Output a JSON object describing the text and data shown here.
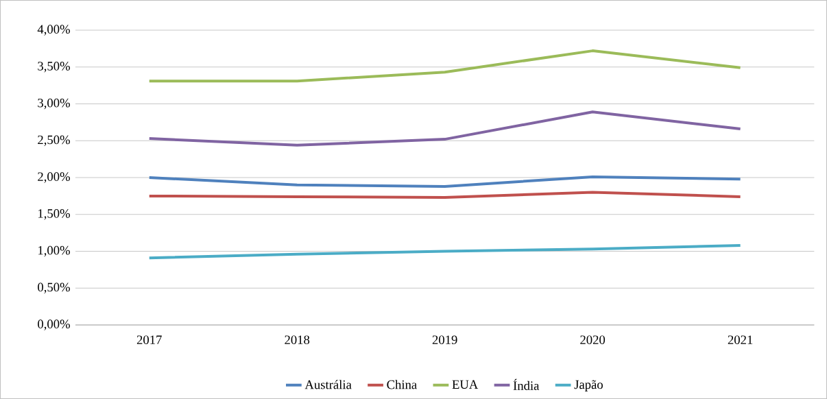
{
  "chart_data": {
    "type": "line",
    "categories": [
      "2017",
      "2018",
      "2019",
      "2020",
      "2021"
    ],
    "series": [
      {
        "name": "Austrália",
        "color": "#4f81bd",
        "values": [
          2.0,
          1.9,
          1.88,
          2.01,
          1.98
        ]
      },
      {
        "name": "China",
        "color": "#c0504d",
        "values": [
          1.75,
          1.74,
          1.73,
          1.8,
          1.74
        ]
      },
      {
        "name": "EUA",
        "color": "#9bbb59",
        "values": [
          3.31,
          3.31,
          3.43,
          3.72,
          3.49
        ]
      },
      {
        "name": "Índia",
        "color": "#8064a2",
        "values": [
          2.53,
          2.44,
          2.52,
          2.89,
          2.66
        ]
      },
      {
        "name": "Japão",
        "color": "#4bacc6",
        "values": [
          0.91,
          0.96,
          1.0,
          1.03,
          1.08
        ]
      }
    ],
    "ylim": [
      0,
      4
    ],
    "yticks": [
      {
        "value": 0,
        "label": "0,00%"
      },
      {
        "value": 0.5,
        "label": "0,50%"
      },
      {
        "value": 1,
        "label": "1,00%"
      },
      {
        "value": 1.5,
        "label": "1,50%"
      },
      {
        "value": 2,
        "label": "2,00%"
      },
      {
        "value": 2.5,
        "label": "2,50%"
      },
      {
        "value": 3,
        "label": "3,00%"
      },
      {
        "value": 3.5,
        "label": "3,50%"
      },
      {
        "value": 4,
        "label": "4,00%"
      }
    ],
    "grid": "y",
    "legend": "bottom",
    "marker": "none",
    "line_style": "solid"
  }
}
